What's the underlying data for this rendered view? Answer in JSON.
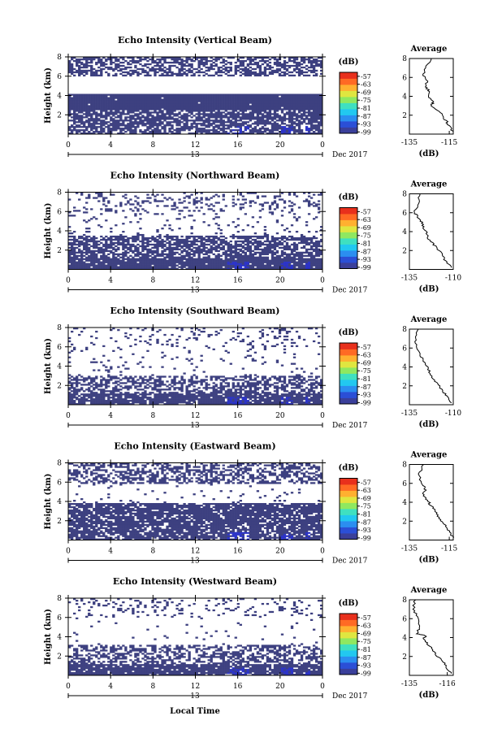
{
  "figure": {
    "xlabel": "Local Time",
    "colorbar_unit": "(dB)",
    "average_title": "Average",
    "average_xlabel": "(dB)"
  },
  "chart_data": [
    {
      "type": "heatmap",
      "title": "Echo Intensity (Vertical Beam)",
      "ylabel": "Height (km)",
      "x_ticks": [
        "0",
        "4",
        "8",
        "12",
        "16",
        "20",
        "0"
      ],
      "date_label": "13",
      "month_label": "Dec 2017",
      "xlim": [
        0,
        24
      ],
      "ylim": [
        0,
        8
      ],
      "y_ticks": [
        "2",
        "4",
        "6",
        "8"
      ],
      "colorbar_ticks": [
        "-57",
        "-63",
        "-69",
        "-75",
        "-81",
        "-87",
        "-93",
        "-99"
      ],
      "colorbar_range": [
        -100,
        -54
      ],
      "intensity_fill_fraction": {
        "0-2.5": 0.72,
        "2.5-4.2": 0.98,
        "4.2-6.0": 0.0,
        "6.0-8.0": 0.55
      },
      "average_profile": {
        "xlim": [
          -135,
          -113
        ],
        "x_ticks": [
          "-135",
          "-115"
        ],
        "y_ticks": [
          "2",
          "4",
          "6",
          "8"
        ],
        "points": [
          [
            -124,
            8.0
          ],
          [
            -127,
            7.0
          ],
          [
            -128,
            6.2
          ],
          [
            -126,
            5.6
          ],
          [
            -127,
            5.0
          ],
          [
            -125,
            4.5
          ],
          [
            -126,
            4.0
          ],
          [
            -123,
            3.4
          ],
          [
            -124,
            3.0
          ],
          [
            -120,
            2.4
          ],
          [
            -118,
            1.8
          ],
          [
            -116,
            1.2
          ],
          [
            -115,
            0.8
          ],
          [
            -113,
            0.2
          ]
        ]
      }
    },
    {
      "type": "heatmap",
      "title": "Echo Intensity (Northward Beam)",
      "ylabel": "Height (km)",
      "x_ticks": [
        "0",
        "4",
        "8",
        "12",
        "16",
        "20",
        "0"
      ],
      "date_label": "13",
      "month_label": "Dec 2017",
      "xlim": [
        0,
        24
      ],
      "ylim": [
        0,
        8
      ],
      "y_ticks": [
        "2",
        "4",
        "6",
        "8"
      ],
      "colorbar_ticks": [
        "-57",
        "-63",
        "-69",
        "-75",
        "-81",
        "-87",
        "-93",
        "-99"
      ],
      "colorbar_range": [
        -100,
        -54
      ],
      "intensity_fill_fraction": {
        "0-1.2": 0.95,
        "1.2-3.5": 0.7,
        "3.5-6.0": 0.08,
        "6.0-8.0": 0.2
      },
      "average_profile": {
        "xlim": [
          -135,
          -110
        ],
        "x_ticks": [
          "-135",
          "-110"
        ],
        "y_ticks": [
          "2",
          "4",
          "6",
          "8"
        ],
        "points": [
          [
            -129,
            8.0
          ],
          [
            -130,
            7.0
          ],
          [
            -132,
            6.0
          ],
          [
            -130,
            5.5
          ],
          [
            -128,
            5.0
          ],
          [
            -127,
            4.4
          ],
          [
            -125,
            3.8
          ],
          [
            -124,
            3.2
          ],
          [
            -121,
            2.6
          ],
          [
            -118,
            2.0
          ],
          [
            -116,
            1.4
          ],
          [
            -114,
            0.8
          ],
          [
            -111,
            0.2
          ]
        ]
      }
    },
    {
      "type": "heatmap",
      "title": "Echo Intensity (Southward Beam)",
      "ylabel": "Height (km)",
      "x_ticks": [
        "0",
        "4",
        "8",
        "12",
        "16",
        "20",
        "0"
      ],
      "date_label": "13",
      "month_label": "Dec 2017",
      "xlim": [
        0,
        24
      ],
      "ylim": [
        0,
        8
      ],
      "y_ticks": [
        "2",
        "4",
        "6",
        "8"
      ],
      "colorbar_ticks": [
        "-57",
        "-63",
        "-69",
        "-75",
        "-81",
        "-87",
        "-93",
        "-99"
      ],
      "colorbar_range": [
        -100,
        -54
      ],
      "intensity_fill_fraction": {
        "0-1.2": 0.88,
        "1.2-3.0": 0.55,
        "3.0-6.0": 0.05,
        "6.0-8.0": 0.12
      },
      "average_profile": {
        "xlim": [
          -135,
          -110
        ],
        "x_ticks": [
          "-135",
          "-110"
        ],
        "y_ticks": [
          "2",
          "4",
          "6",
          "8"
        ],
        "points": [
          [
            -130,
            8.0
          ],
          [
            -132,
            7.0
          ],
          [
            -131,
            6.2
          ],
          [
            -129,
            5.4
          ],
          [
            -127,
            4.6
          ],
          [
            -125,
            4.0
          ],
          [
            -123,
            3.3
          ],
          [
            -121,
            2.6
          ],
          [
            -118,
            2.0
          ],
          [
            -116,
            1.4
          ],
          [
            -113,
            0.8
          ],
          [
            -111,
            0.2
          ]
        ]
      }
    },
    {
      "type": "heatmap",
      "title": "Echo Intensity (Eastward Beam)",
      "ylabel": "Height (km)",
      "x_ticks": [
        "0",
        "4",
        "8",
        "12",
        "16",
        "20",
        "0"
      ],
      "date_label": "13",
      "month_label": "Dec 2017",
      "xlim": [
        0,
        24
      ],
      "ylim": [
        0,
        8
      ],
      "y_ticks": [
        "2",
        "4",
        "6",
        "8"
      ],
      "colorbar_ticks": [
        "-57",
        "-63",
        "-69",
        "-75",
        "-81",
        "-87",
        "-93",
        "-99"
      ],
      "colorbar_range": [
        -100,
        -54
      ],
      "intensity_fill_fraction": {
        "0-1.5": 0.8,
        "1.5-3.8": 0.85,
        "3.8-5.8": 0.05,
        "5.8-8.0": 0.5
      },
      "average_profile": {
        "xlim": [
          -135,
          -113
        ],
        "x_ticks": [
          "-135",
          "-115"
        ],
        "y_ticks": [
          "2",
          "4",
          "6",
          "8"
        ],
        "points": [
          [
            -128,
            8.0
          ],
          [
            -130,
            7.0
          ],
          [
            -129,
            6.0
          ],
          [
            -127,
            5.4
          ],
          [
            -128,
            4.8
          ],
          [
            -126,
            4.2
          ],
          [
            -124,
            3.6
          ],
          [
            -122,
            3.0
          ],
          [
            -120,
            2.4
          ],
          [
            -118,
            1.8
          ],
          [
            -116,
            1.2
          ],
          [
            -114,
            0.6
          ],
          [
            -113,
            0.2
          ]
        ]
      }
    },
    {
      "type": "heatmap",
      "title": "Echo Intensity (Westward Beam)",
      "ylabel": "Height (km)",
      "x_ticks": [
        "0",
        "4",
        "8",
        "12",
        "16",
        "20",
        "0"
      ],
      "date_label": "13",
      "month_label": "Dec 2017",
      "xlim": [
        0,
        24
      ],
      "ylim": [
        0,
        8
      ],
      "y_ticks": [
        "2",
        "4",
        "6",
        "8"
      ],
      "colorbar_ticks": [
        "-57",
        "-63",
        "-69",
        "-75",
        "-81",
        "-87",
        "-93",
        "-99"
      ],
      "colorbar_range": [
        -100,
        -54
      ],
      "intensity_fill_fraction": {
        "0-1.2": 0.9,
        "1.2-3.2": 0.5,
        "3.2-6.0": 0.03,
        "6.0-8.0": 0.15
      },
      "average_profile": {
        "xlim": [
          -135,
          -113
        ],
        "x_ticks": [
          "-135",
          "-116"
        ],
        "y_ticks": [
          "2",
          "4",
          "6",
          "8"
        ],
        "points": [
          [
            -132,
            8.0
          ],
          [
            -133,
            7.0
          ],
          [
            -131,
            6.2
          ],
          [
            -130,
            5.0
          ],
          [
            -131,
            4.4
          ],
          [
            -127,
            4.2
          ],
          [
            -128,
            3.8
          ],
          [
            -125,
            3.2
          ],
          [
            -123,
            2.6
          ],
          [
            -121,
            2.0
          ],
          [
            -118,
            1.4
          ],
          [
            -116,
            0.8
          ],
          [
            -114,
            0.2
          ]
        ]
      }
    }
  ],
  "colors": {
    "echo_base": "#3d4080",
    "echo_strong": "#2b33c8",
    "colorbar": [
      "#3a3f9a",
      "#2b4fd6",
      "#2b8ef0",
      "#22c8f0",
      "#3fe0c0",
      "#8fe860",
      "#dfe640",
      "#ffb030",
      "#ff6a24",
      "#e8301c"
    ]
  }
}
